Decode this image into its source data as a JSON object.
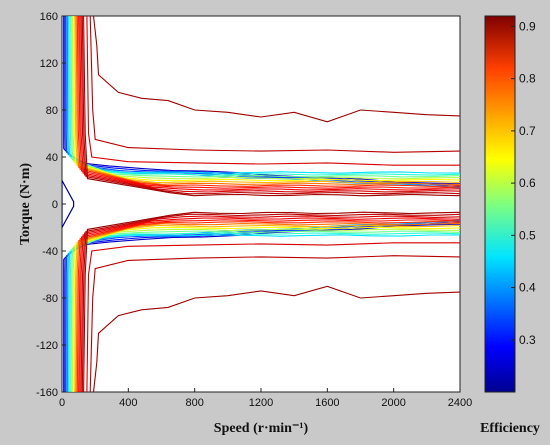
{
  "chart_data": {
    "type": "contour",
    "title": "",
    "xlabel": "Speed (r·min⁻¹)",
    "ylabel": "Torque (N·m)",
    "xlim": [
      0,
      2400
    ],
    "ylim": [
      -160,
      160
    ],
    "xticks": [
      "0",
      "400",
      "800",
      "1200",
      "1600",
      "2000",
      "2400"
    ],
    "yticks": [
      "160",
      "120",
      "80",
      "40",
      "0",
      "-40",
      "-80",
      "-120",
      "-160"
    ],
    "colorbar": {
      "label": "Efficiency",
      "range": [
        0.2,
        0.92
      ],
      "ticks": [
        "0.3",
        "0.4",
        "0.5",
        "0.6",
        "0.7",
        "0.8",
        "0.9"
      ],
      "colormap": "jet"
    },
    "contour_levels": [
      0.25,
      0.3,
      0.35,
      0.4,
      0.45,
      0.5,
      0.55,
      0.6,
      0.65,
      0.7,
      0.75,
      0.8,
      0.82,
      0.84,
      0.86,
      0.88,
      0.9
    ],
    "outer_contours": [
      {
        "level": 0.9,
        "points": [
          [
            190,
            160
          ],
          [
            210,
            135
          ],
          [
            220,
            110
          ],
          [
            340,
            95
          ],
          [
            480,
            90
          ],
          [
            640,
            88
          ],
          [
            800,
            80
          ],
          [
            1000,
            78
          ],
          [
            1200,
            74
          ],
          [
            1400,
            78
          ],
          [
            1600,
            70
          ],
          [
            1800,
            80
          ],
          [
            2000,
            78
          ],
          [
            2200,
            76
          ],
          [
            2400,
            75
          ]
        ]
      },
      {
        "level": 0.88,
        "points": [
          [
            170,
            160
          ],
          [
            185,
            80
          ],
          [
            200,
            55
          ],
          [
            400,
            48
          ],
          [
            800,
            46
          ],
          [
            1200,
            45
          ],
          [
            1600,
            46
          ],
          [
            2000,
            44
          ],
          [
            2400,
            45
          ]
        ]
      },
      {
        "level": 0.86,
        "points": [
          [
            150,
            160
          ],
          [
            160,
            60
          ],
          [
            180,
            40
          ],
          [
            400,
            36
          ],
          [
            800,
            35
          ],
          [
            1200,
            34
          ],
          [
            1600,
            35
          ],
          [
            2000,
            33
          ],
          [
            2400,
            33
          ]
        ]
      }
    ],
    "colors": {
      "background": "#c9c9c9",
      "plot_bg": "#ffffff",
      "low": "#00008f",
      "mid": "#00e5ff",
      "high": "#ff7a00",
      "top": "#8b0000"
    }
  }
}
